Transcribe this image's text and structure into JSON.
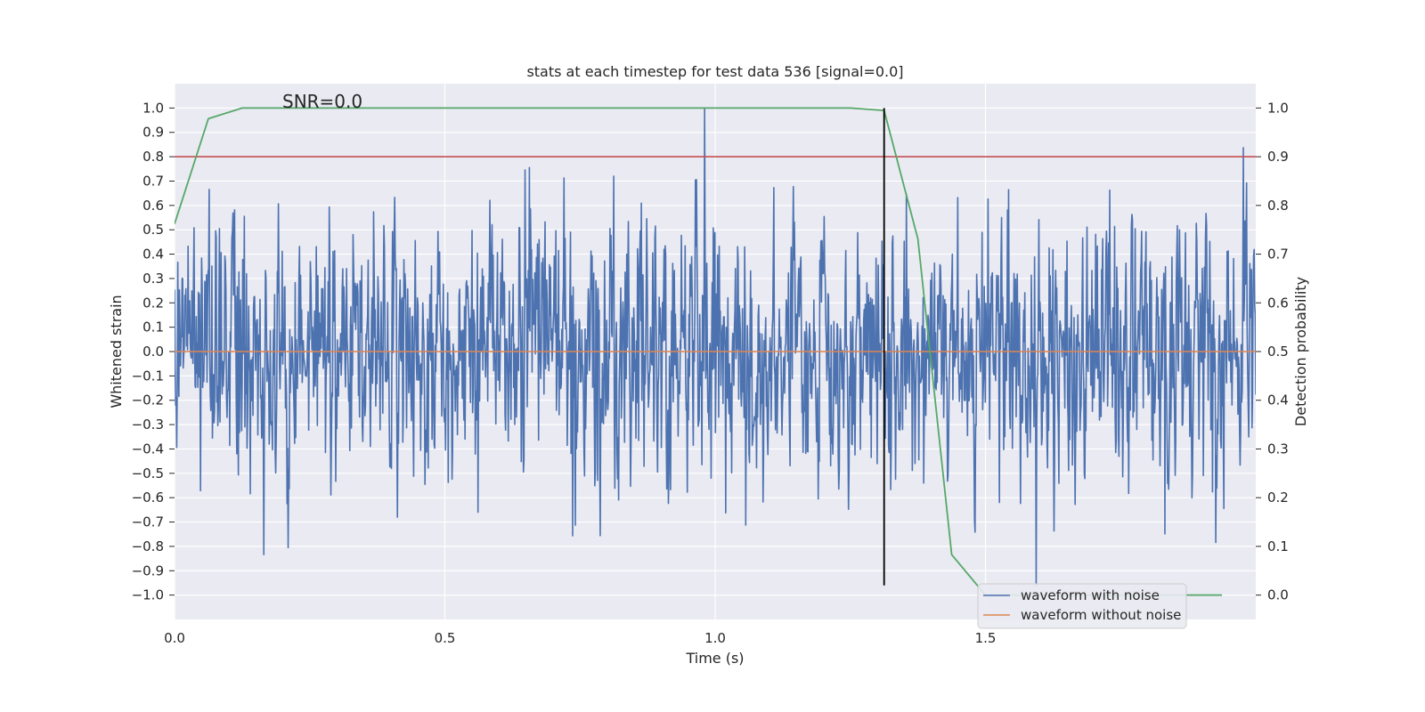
{
  "chart_data": {
    "type": "line",
    "title": "stats at each timestep for test data 536 [signal=0.0]",
    "xlabel": "Time (s)",
    "ylabel": "Whitened strain",
    "y2label": "Detection probability",
    "xlim": [
      0.0,
      2.0
    ],
    "ylim": [
      -1.1,
      1.1
    ],
    "y2lim": [
      -0.05,
      1.05
    ],
    "xticks": [
      0.0,
      0.5,
      1.0,
      1.5
    ],
    "xtick_labels": [
      "0.0",
      "0.5",
      "1.0",
      "1.5"
    ],
    "yticks": [
      -1.0,
      -0.9,
      -0.8,
      -0.7,
      -0.6,
      -0.5,
      -0.4,
      -0.3,
      -0.2,
      -0.1,
      0.0,
      0.1,
      0.2,
      0.3,
      0.4,
      0.5,
      0.6,
      0.7,
      0.8,
      0.9,
      1.0
    ],
    "ytick_labels": [
      "−1.0",
      "−0.9",
      "−0.8",
      "−0.7",
      "−0.6",
      "−0.5",
      "−0.4",
      "−0.3",
      "−0.2",
      "−0.1",
      "0.0",
      "0.1",
      "0.2",
      "0.3",
      "0.4",
      "0.5",
      "0.6",
      "0.7",
      "0.8",
      "0.9",
      "1.0"
    ],
    "y2ticks": [
      0.0,
      0.1,
      0.2,
      0.3,
      0.4,
      0.5,
      0.6,
      0.7,
      0.8,
      0.9,
      1.0
    ],
    "y2tick_labels": [
      "0.0",
      "0.1",
      "0.2",
      "0.3",
      "0.4",
      "0.5",
      "0.6",
      "0.7",
      "0.8",
      "0.9",
      "1.0"
    ],
    "grid": true,
    "legend_position": "lower-right",
    "annotation": "SNR=0.0",
    "annotation_position": {
      "x": 0.2,
      "y": 1.0
    },
    "series": [
      {
        "name": "waveform with noise",
        "color": "#4c72b0",
        "axis": "left",
        "generator": {
          "n": 2000,
          "x_start": 0.0,
          "x_end": 2.0,
          "peak_abs": 1.0,
          "peak_at": 0.98,
          "seed": 536
        }
      },
      {
        "name": "waveform without noise",
        "color": "#dd8452",
        "axis": "left",
        "x": [
          0.0,
          2.0
        ],
        "y": [
          0.0,
          0.0
        ]
      },
      {
        "name": "",
        "color": "#55a868",
        "axis": "right",
        "x": [
          0.0,
          0.0625,
          0.125,
          0.1875,
          0.25,
          0.3125,
          0.375,
          0.4375,
          0.5,
          0.5625,
          0.625,
          0.6875,
          0.75,
          0.8125,
          0.875,
          0.9375,
          1.0,
          1.0625,
          1.125,
          1.1875,
          1.25,
          1.3125,
          1.375,
          1.4375,
          1.5,
          1.5625,
          1.625,
          1.6875,
          1.75,
          1.8125,
          1.875,
          1.9375
        ],
        "y": [
          0.762,
          0.978,
          1.0,
          1.0,
          1.0,
          1.0,
          1.0,
          1.0,
          1.0,
          1.0,
          1.0,
          1.0,
          1.0,
          1.0,
          1.0,
          1.0,
          1.0,
          1.0,
          1.0,
          1.0,
          1.0,
          0.995,
          0.731,
          0.083,
          0.0,
          0.0,
          0.0,
          0.0,
          0.0,
          0.0,
          0.0,
          0.0
        ]
      }
    ],
    "threshold_line": {
      "axis": "right",
      "y": 0.9,
      "color": "#c44e52"
    },
    "marker_line": {
      "x": 1.3125,
      "y_from": -0.96,
      "y_to": 1.0,
      "color": "#000000"
    }
  }
}
